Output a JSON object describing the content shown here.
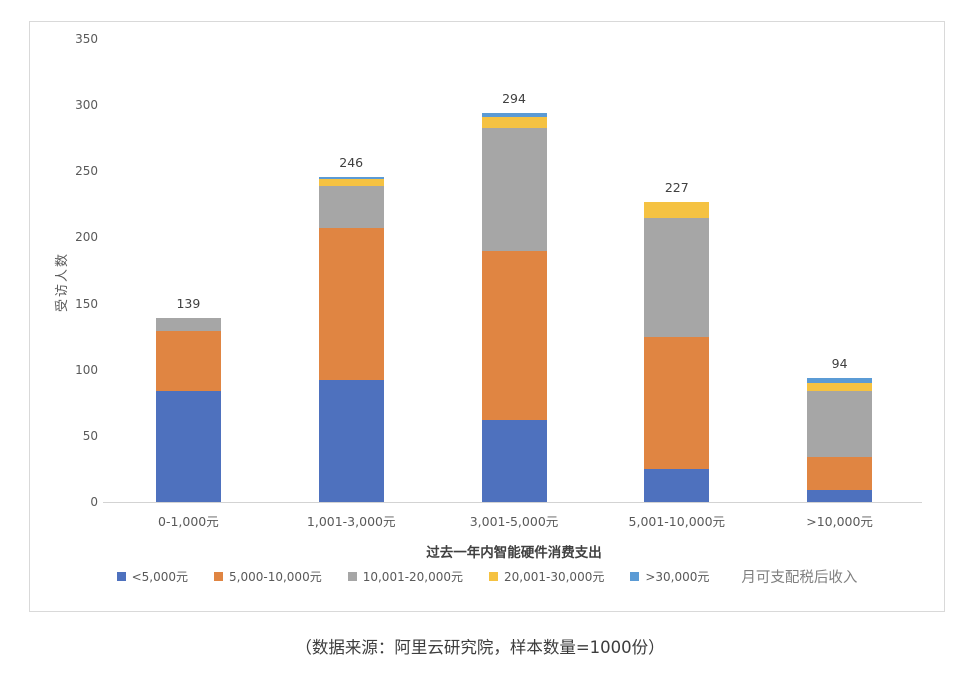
{
  "chart_data": {
    "type": "bar",
    "stacked": true,
    "title": "",
    "xlabel": "过去一年内智能硬件消费支出",
    "ylabel": "受访人数",
    "legend_title": "月可支配税后收入",
    "legend_position": "bottom",
    "grid": false,
    "ylim": [
      0,
      350
    ],
    "y_ticks": [
      0,
      50,
      100,
      150,
      200,
      250,
      300,
      350
    ],
    "categories": [
      "0-1,000元",
      "1,001-3,000元",
      "3,001-5,000元",
      "5,001-10,000元",
      ">10,000元"
    ],
    "series": [
      {
        "name": "<5,000元",
        "color": "#4e71be",
        "values": [
          84,
          92,
          62,
          25,
          9
        ]
      },
      {
        "name": "5,000-10,000元",
        "color": "#e08542",
        "values": [
          45,
          115,
          128,
          100,
          25
        ]
      },
      {
        "name": "10,001-20,000元",
        "color": "#a6a6a6",
        "values": [
          10,
          32,
          93,
          90,
          50
        ]
      },
      {
        "name": "20,001-30,000元",
        "color": "#f5c242",
        "values": [
          0,
          5,
          8,
          12,
          6
        ]
      },
      {
        "name": ">30,000元",
        "color": "#5b9bd5",
        "values": [
          0,
          2,
          3,
          0,
          4
        ]
      }
    ],
    "totals": [
      139,
      246,
      294,
      227,
      94
    ]
  },
  "caption": "（数据来源：阿里云研究院，样本数量=1000份）"
}
